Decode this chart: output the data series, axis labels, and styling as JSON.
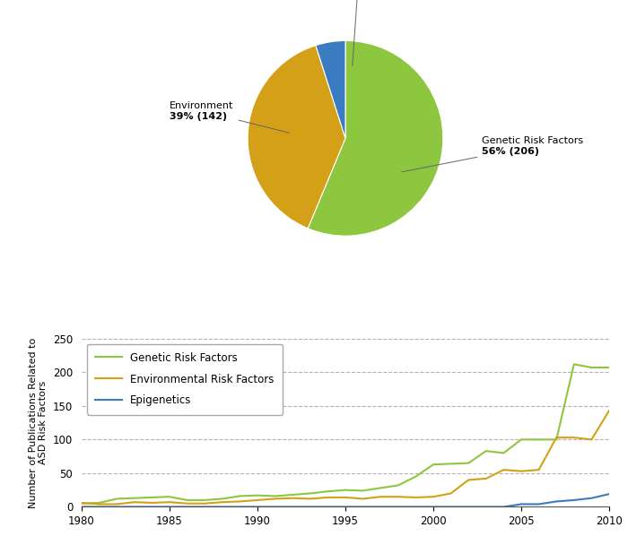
{
  "pie_values": [
    206,
    142,
    18
  ],
  "pie_colors": [
    "#8dc63f",
    "#d4a017",
    "#3b7bbf"
  ],
  "years": [
    1980,
    1981,
    1982,
    1983,
    1984,
    1985,
    1986,
    1987,
    1988,
    1989,
    1990,
    1991,
    1992,
    1993,
    1994,
    1995,
    1996,
    1997,
    1998,
    1999,
    2000,
    2001,
    2002,
    2003,
    2004,
    2005,
    2006,
    2007,
    2008,
    2009,
    2010
  ],
  "genetic": [
    5,
    6,
    12,
    13,
    14,
    15,
    10,
    10,
    12,
    16,
    17,
    16,
    18,
    20,
    23,
    25,
    24,
    28,
    32,
    45,
    63,
    64,
    65,
    83,
    80,
    100,
    100,
    100,
    212,
    207,
    207
  ],
  "environmental": [
    6,
    4,
    4,
    7,
    6,
    7,
    5,
    5,
    7,
    8,
    10,
    12,
    13,
    12,
    14,
    14,
    12,
    15,
    15,
    14,
    15,
    20,
    40,
    42,
    55,
    53,
    55,
    103,
    103,
    100,
    143
  ],
  "epigenetics": [
    0,
    0,
    0,
    0,
    0,
    0,
    0,
    0,
    0,
    0,
    0,
    0,
    0,
    0,
    0,
    0,
    0,
    0,
    0,
    0,
    0,
    0,
    0,
    0,
    0,
    4,
    4,
    8,
    10,
    13,
    19
  ],
  "genetic_color": "#8dc63f",
  "environmental_color": "#d4a017",
  "epigenetics_color": "#3b7bbf",
  "ylabel": "Number of Publications Related to\nASD Risk Factors",
  "ylim": [
    0,
    250
  ],
  "yticks": [
    0,
    50,
    100,
    150,
    200,
    250
  ],
  "xlim": [
    1980,
    2010
  ],
  "xticks": [
    1980,
    1985,
    1990,
    1995,
    2000,
    2005,
    2010
  ],
  "legend_labels": [
    "Genetic Risk Factors",
    "Environmental Risk Factors",
    "Epigenetics"
  ],
  "background_color": "#ffffff"
}
